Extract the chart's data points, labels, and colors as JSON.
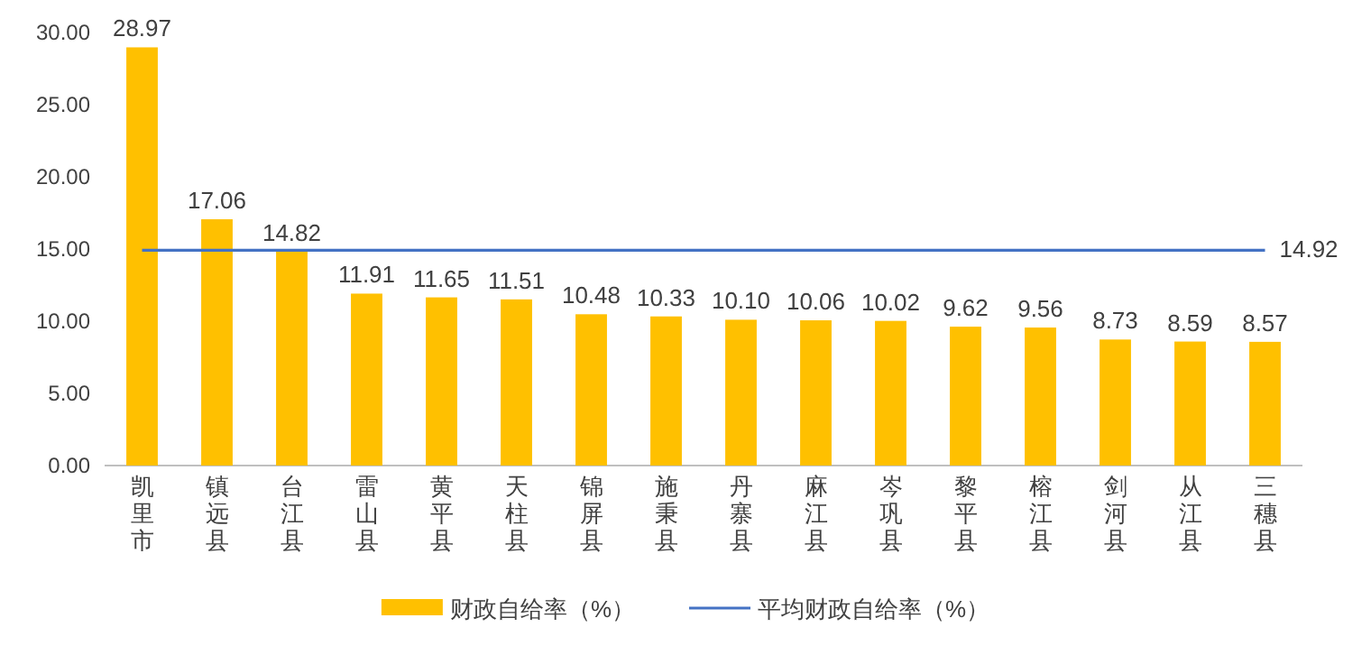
{
  "chart_data": {
    "type": "bar",
    "categories": [
      "凯里市",
      "镇远县",
      "台江县",
      "雷山县",
      "黄平县",
      "天柱县",
      "锦屏县",
      "施秉县",
      "丹寨县",
      "麻江县",
      "岑巩县",
      "黎平县",
      "榕江县",
      "剑河县",
      "从江县",
      "三穗县"
    ],
    "series": [
      {
        "name": "财政自给率（%）",
        "color": "#ffc000",
        "values": [
          28.97,
          17.06,
          14.82,
          11.91,
          11.65,
          11.51,
          10.48,
          10.33,
          10.1,
          10.06,
          10.02,
          9.62,
          9.56,
          8.73,
          8.59,
          8.57
        ],
        "value_labels": [
          "28.97",
          "17.06",
          "14.82",
          "11.91",
          "11.65",
          "11.51",
          "10.48",
          "10.33",
          "10.10",
          "10.06",
          "10.02",
          "9.62",
          "9.56",
          "8.73",
          "8.59",
          "8.57"
        ]
      },
      {
        "name": "平均财政自给率（%）",
        "type": "line",
        "color": "#4472c4",
        "values": [
          14.92,
          14.92,
          14.92,
          14.92,
          14.92,
          14.92,
          14.92,
          14.92,
          14.92,
          14.92,
          14.92,
          14.92,
          14.92,
          14.92,
          14.92,
          14.92
        ],
        "value_labels": [
          null,
          null,
          null,
          null,
          null,
          null,
          null,
          null,
          null,
          null,
          null,
          null,
          null,
          null,
          null,
          "14.92"
        ]
      }
    ],
    "ylim": [
      0,
      30
    ],
    "yticks": [
      {
        "value": 0,
        "label": "0.00"
      },
      {
        "value": 5,
        "label": "5.00"
      },
      {
        "value": 10,
        "label": "10.00"
      },
      {
        "value": 15,
        "label": "15.00"
      },
      {
        "value": 20,
        "label": "20.00"
      },
      {
        "value": 25,
        "label": "25.00"
      },
      {
        "value": 30,
        "label": "30.00"
      }
    ],
    "grid": false,
    "legend": "bottom"
  }
}
